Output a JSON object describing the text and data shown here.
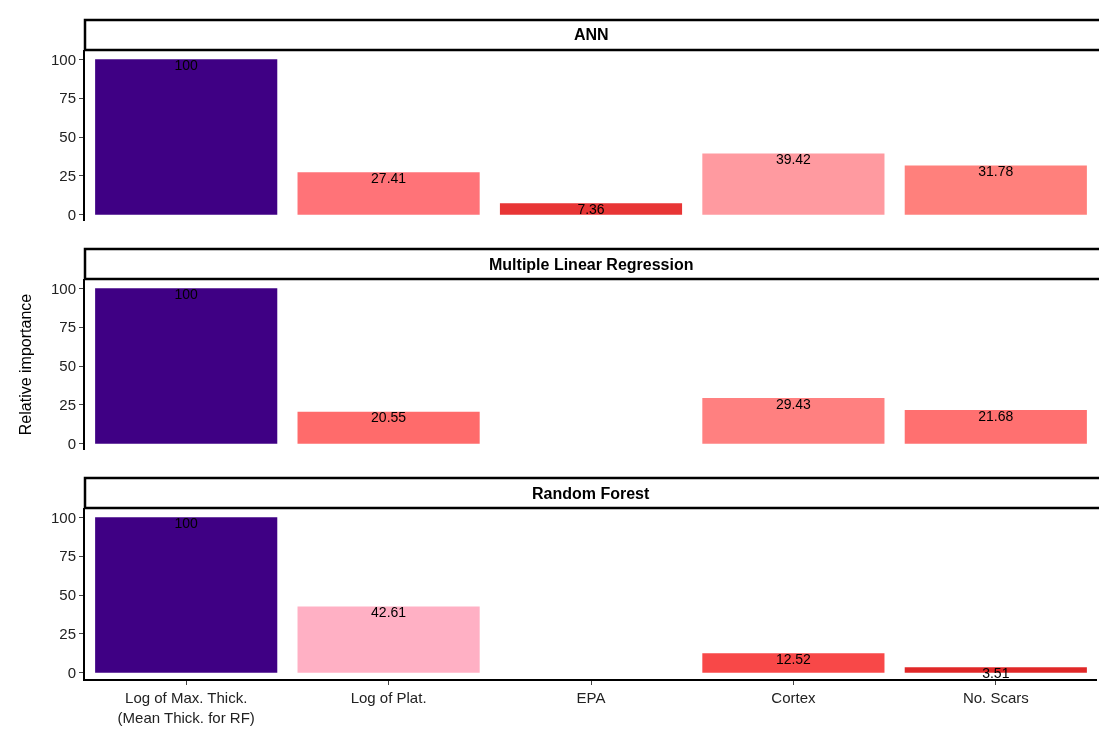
{
  "chart_data": [
    {
      "type": "bar",
      "title": "ANN",
      "categories": [
        "Log of Max. Thick.\n(Mean Thick. for RF)",
        "Log of Plat.",
        "EPA",
        "Cortex",
        "No. Scars"
      ],
      "values": [
        100,
        27.41,
        7.36,
        39.42,
        31.78
      ],
      "colors": [
        "#3f0084",
        "#ff7378",
        "#e83535",
        "#ff9aa0",
        "#ff807c"
      ],
      "ylim": [
        -4,
        106
      ],
      "yticks": [
        0,
        25,
        50,
        75,
        100
      ],
      "data_labels": true,
      "tick_labels": "y"
    },
    {
      "type": "bar",
      "title": "Multiple Linear Regression",
      "ylabel": "Relative importance",
      "categories": [
        "Log of Max. Thick.\n(Mean Thick. for RF)",
        "Log of Plat.",
        "EPA",
        "Cortex",
        "No. Scars"
      ],
      "values": [
        100,
        20.55,
        null,
        29.43,
        21.68
      ],
      "colors": [
        "#3f0084",
        "#ff6b6b",
        null,
        "#ff8080",
        "#ff7070"
      ],
      "ylim": [
        -4,
        106
      ],
      "yticks": [
        0,
        25,
        50,
        75,
        100
      ],
      "data_labels": true,
      "tick_labels": "y"
    },
    {
      "type": "bar",
      "title": "Random Forest",
      "categories": [
        "Log of Max. Thick.\n(Mean Thick. for RF)",
        "Log of Plat.",
        "EPA",
        "Cortex",
        "No. Scars"
      ],
      "values": [
        100,
        42.61,
        null,
        12.52,
        3.51
      ],
      "colors": [
        "#3f0084",
        "#ffb0c4",
        null,
        "#f84848",
        "#e02828"
      ],
      "ylim": [
        -4,
        106
      ],
      "yticks": [
        0,
        25,
        50,
        75,
        100
      ],
      "data_labels": true
    }
  ]
}
